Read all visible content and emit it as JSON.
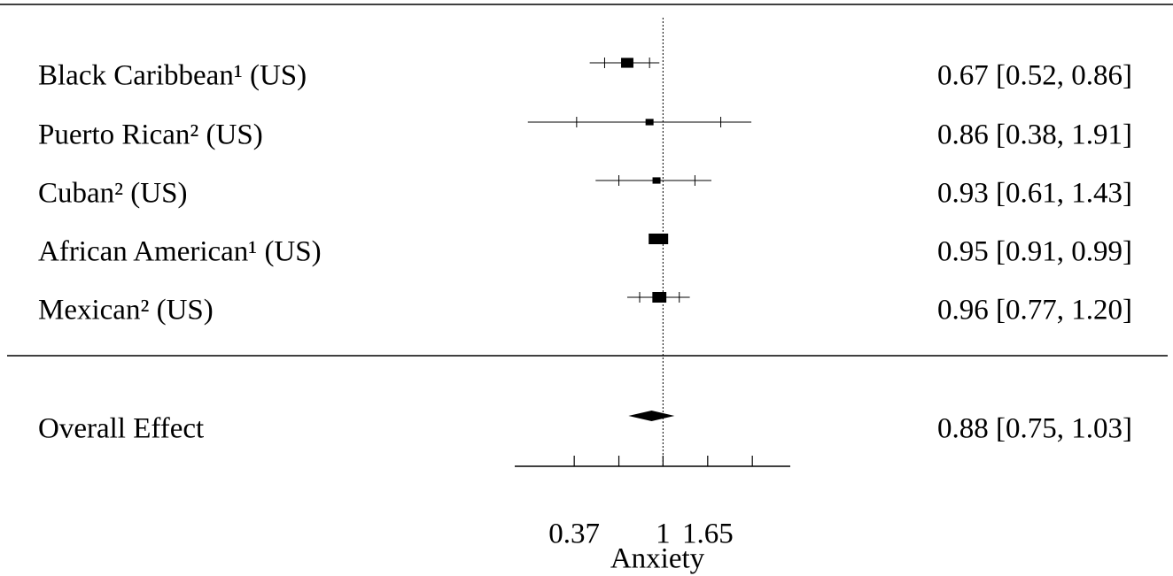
{
  "chart_data": {
    "type": "forest",
    "categories": [
      "Black Caribbean¹ (US)",
      "Puerto Rican² (US)",
      "Cuban² (US)",
      "African American¹ (US)",
      "Mexican² (US)"
    ],
    "values": [
      0.67,
      0.86,
      0.93,
      0.95,
      0.96
    ],
    "lower": [
      0.52,
      0.38,
      0.61,
      0.91,
      0.77
    ],
    "upper": [
      0.86,
      1.91,
      1.43,
      0.99,
      1.2
    ],
    "outer_lower": [
      0.44,
      0.22,
      0.47,
      null,
      0.67
    ],
    "outer_upper": [
      0.96,
      2.69,
      1.72,
      null,
      1.35
    ],
    "value_labels": [
      "0.67 [0.52, 0.86]",
      "0.86 [0.38, 1.91]",
      "0.93 [0.61, 1.43]",
      "0.95 [0.91, 0.99]",
      "0.96 [0.77, 1.20]"
    ],
    "overall": {
      "label": "Overall Effect",
      "value": 0.88,
      "lower": 0.75,
      "upper": 1.03,
      "value_label": "0.88 [0.75, 1.03]"
    },
    "xlabel": "Anxiety",
    "log_x": true,
    "reference": 1,
    "xlim": [
      0.19,
      4.16
    ],
    "xticks": [
      0.37,
      {
        "value": 0.61,
        "label": null
      },
      1,
      1.65,
      {
        "value": 2.72,
        "label": null
      }
    ],
    "color": "#000000"
  }
}
